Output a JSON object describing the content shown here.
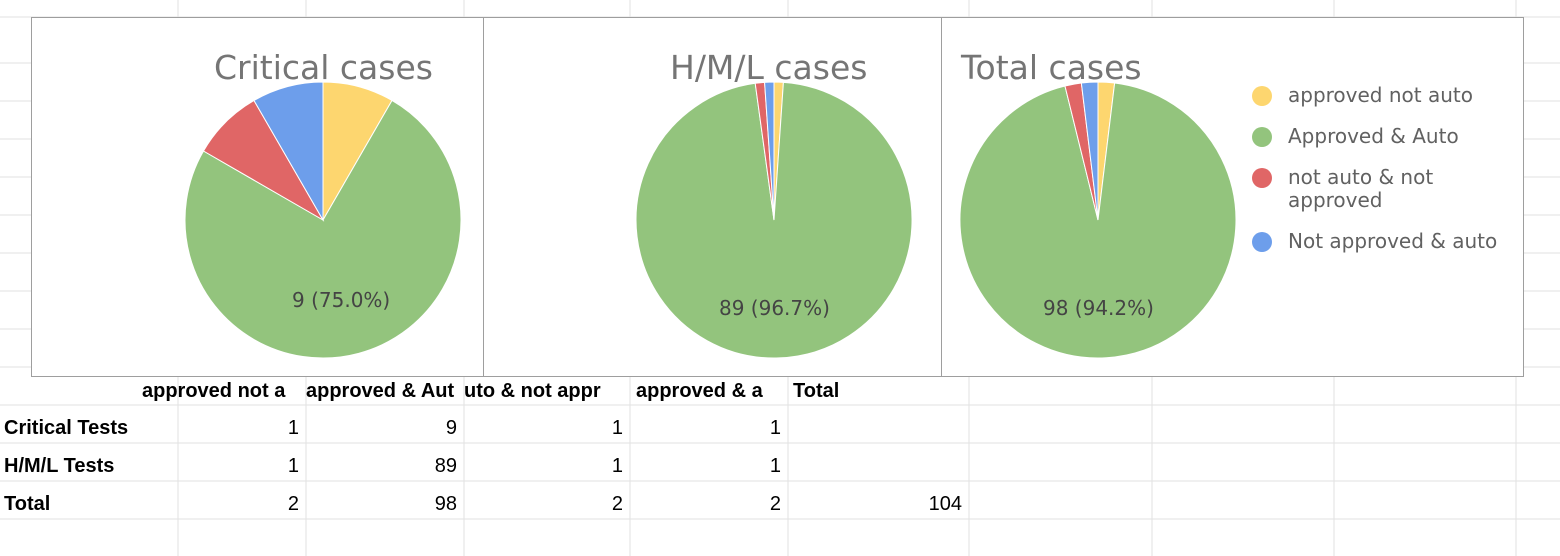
{
  "colors": {
    "approved_not_auto": "#fdd66f",
    "approved_and_auto": "#93c47d",
    "not_auto_not_approved": "#e06666",
    "not_approved_and_auto": "#6d9eeb"
  },
  "chart_data": [
    {
      "type": "pie",
      "title": "Critical cases",
      "categories": [
        "approved not auto",
        "Approved & Auto",
        "not auto & not approved",
        "Not approved & auto"
      ],
      "values": [
        1,
        9,
        1,
        1
      ],
      "data_labels": [
        "9 (75.0%)"
      ]
    },
    {
      "type": "pie",
      "title": "H/M/L cases",
      "categories": [
        "approved not auto",
        "Approved & Auto",
        "not auto & not approved",
        "Not approved & auto"
      ],
      "values": [
        1,
        89,
        1,
        1
      ],
      "data_labels": [
        "89 (96.7%)"
      ]
    },
    {
      "type": "pie",
      "title": "Total cases",
      "categories": [
        "approved not auto",
        "Approved & Auto",
        "not auto & not approved",
        "Not approved & auto"
      ],
      "values": [
        2,
        98,
        2,
        2
      ],
      "data_labels": [
        "98 (94.2%)"
      ],
      "legend": "right"
    }
  ],
  "legend": [
    {
      "label": "approved not auto",
      "color": "#fdd66f"
    },
    {
      "label": "Approved & Auto",
      "color": "#93c47d"
    },
    {
      "label": "not auto & not approved",
      "color": "#e06666"
    },
    {
      "label": "Not approved & auto",
      "color": "#6d9eeb"
    }
  ],
  "table": {
    "headers": [
      "approved not a",
      "approved & Aut",
      "uto & not appr",
      "approved & a",
      "Total"
    ],
    "rows": [
      {
        "label": "Critical Tests",
        "values": [
          "1",
          "9",
          "1",
          "1",
          ""
        ]
      },
      {
        "label": "H/M/L Tests",
        "values": [
          "1",
          "89",
          "1",
          "1",
          ""
        ]
      },
      {
        "label": "Total",
        "values": [
          "2",
          "98",
          "2",
          "2",
          "104"
        ]
      }
    ]
  }
}
